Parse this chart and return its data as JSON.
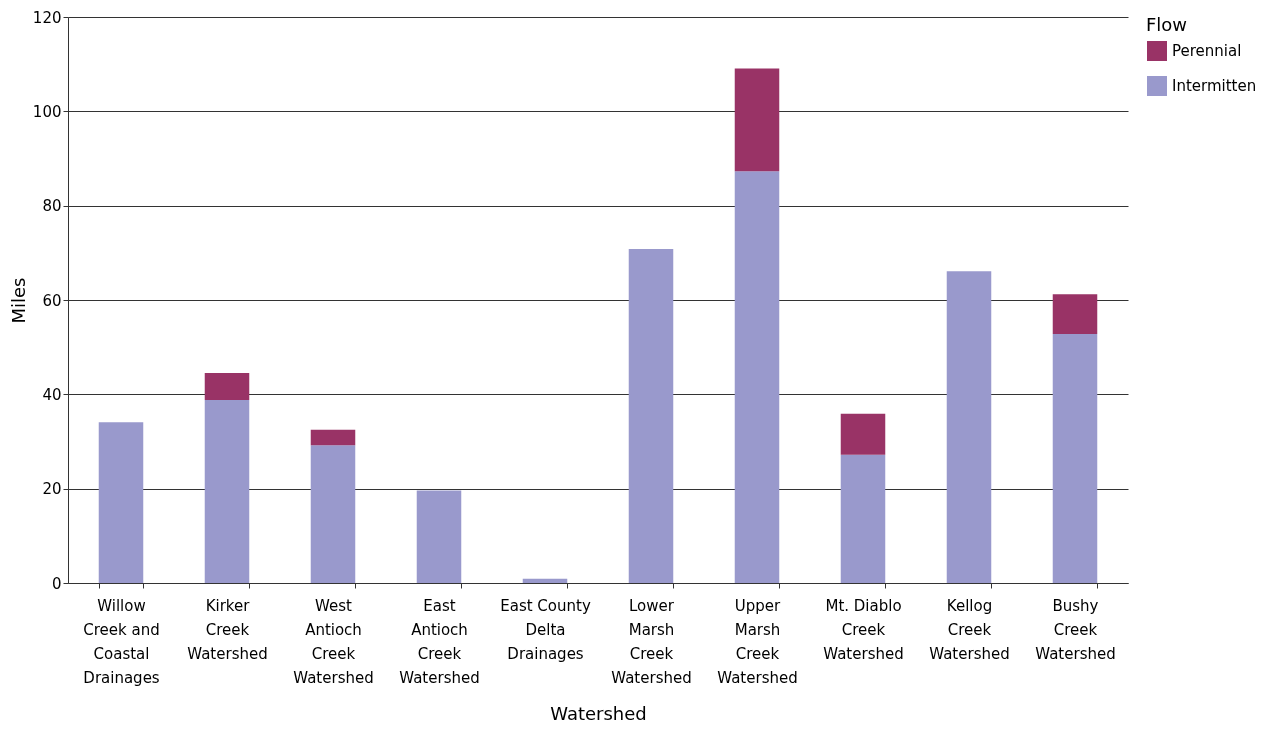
{
  "chart_data": {
    "type": "bar",
    "stacked": true,
    "xlabel": "Watershed",
    "ylabel": "Miles",
    "legend_title": "Flow",
    "legend": "top right",
    "categories": [
      "Willow\nCreek and\nCoastal\nDrainages",
      "Kirker\nCreek\nWatershed",
      "West\nAntioch\nCreek\nWatershed",
      "East\nAntioch\nCreek\nWatershed",
      "East County\nDelta\nDrainages",
      "Lower\nMarsh\nCreek\nWatershed",
      "Upper\nMarsh\nCreek\nWatershed",
      "Mt. Diablo\nCreek\nWatershed",
      "Kellog\nCreek\nWatershed",
      "Bushy\nCreek\nWatershed"
    ],
    "series": [
      {
        "name": "Intermitten",
        "color": "#9999cc",
        "values": [
          34.1,
          38.8,
          29.2,
          19.6,
          0.9,
          70.8,
          87.3,
          27.2,
          66.1,
          52.8
        ]
      },
      {
        "name": "Perennial",
        "color": "#993366",
        "values": [
          null,
          5.7,
          3.3,
          null,
          null,
          null,
          21.8,
          8.7,
          null,
          8.4
        ]
      }
    ],
    "ylim": [
      0,
      120
    ],
    "yticks": [
      0,
      20,
      40,
      60,
      80,
      100,
      120
    ],
    "grid": "y"
  }
}
